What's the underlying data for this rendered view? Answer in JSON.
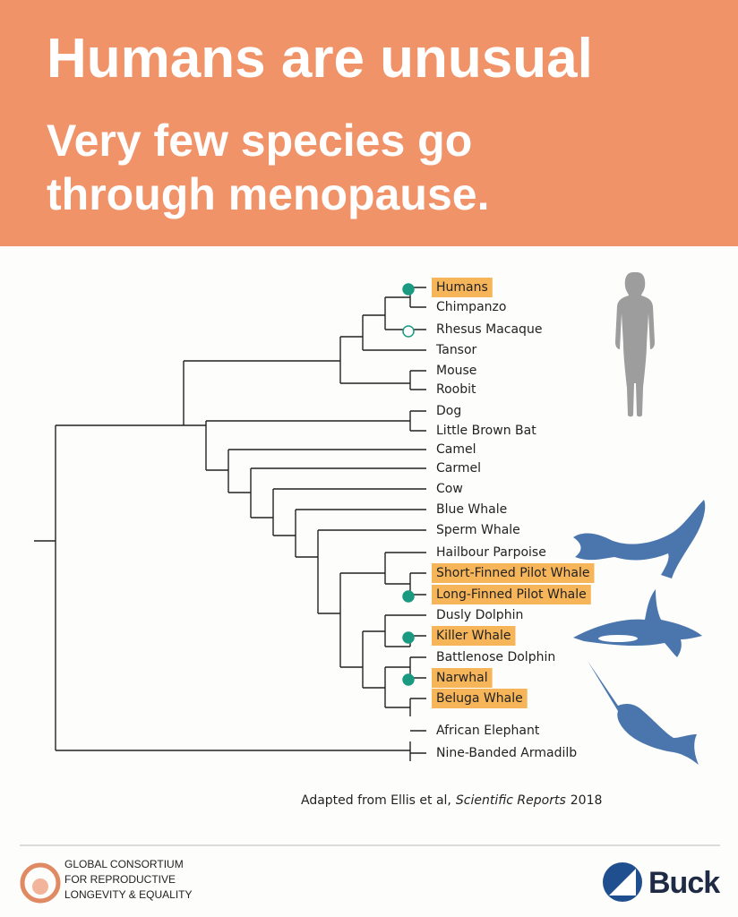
{
  "header": {
    "title": "Humans are unusual",
    "subtitle": [
      "Very few species go",
      "through menopause."
    ]
  },
  "species": [
    {
      "label": "Humans",
      "highlight": true,
      "marker": "filled"
    },
    {
      "label": "Chimpanzo"
    },
    {
      "label": "Rhesus Macaque",
      "marker": "open"
    },
    {
      "label": "Tansor"
    },
    {
      "label": "Mouse"
    },
    {
      "label": "Roobit"
    },
    {
      "label": "Dog"
    },
    {
      "label": "Little Brown Bat"
    },
    {
      "label": "Camel"
    },
    {
      "label": "Carmel"
    },
    {
      "label": "Cow"
    },
    {
      "label": "Blue Whale"
    },
    {
      "label": "Sperm Whale"
    },
    {
      "label": "Hailbour Parpoise"
    },
    {
      "label": "Short-Finned Pilot Whale",
      "highlight": true
    },
    {
      "label": "Long-Finned Pilot Whale",
      "highlight": true,
      "marker": "filled"
    },
    {
      "label": "Dusly Dolphin"
    },
    {
      "label": "Killer Whale",
      "highlight": true,
      "marker": "filled"
    },
    {
      "label": "Battlenose Dolphin"
    },
    {
      "label": "Narwhal",
      "highlight": true,
      "marker": "filled"
    },
    {
      "label": "Beluga Whale",
      "highlight": true
    },
    {
      "label": "African Elephant"
    },
    {
      "label": "Nine-Banded Armadilb"
    }
  ],
  "caption": {
    "text": "Adapted from Ellis et al,",
    "journal": "Scientific Reports",
    "year": "2018"
  },
  "footer": {
    "org": [
      "GLOBAL CONSORTIUM",
      "FOR REPRODUCTIVE",
      "LONGEVITY & EQUALITY"
    ],
    "brand": "Buck"
  }
}
